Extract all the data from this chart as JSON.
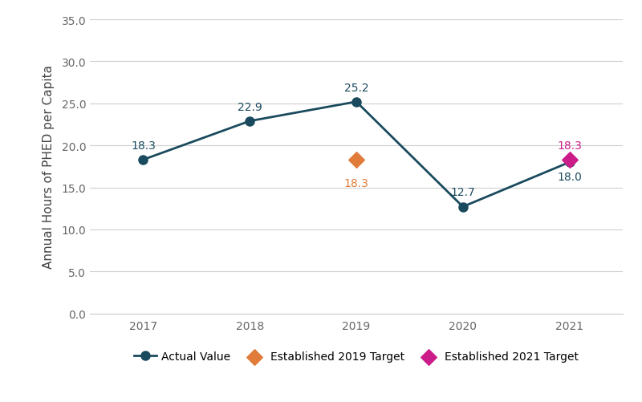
{
  "years": [
    2017,
    2018,
    2019,
    2020,
    2021
  ],
  "actual_values": [
    18.3,
    22.9,
    25.2,
    12.7,
    18.0
  ],
  "target_2019": {
    "year": 2019,
    "value": 18.3
  },
  "target_2021": {
    "year": 2021,
    "value": 18.3
  },
  "actual_line_color": "#1a4a5e",
  "target_2019_color": "#e07b39",
  "target_2021_color": "#cc1c8a",
  "ylabel": "Annual Hours of PHED per Capita",
  "ylim": [
    0,
    35
  ],
  "yticks": [
    0.0,
    5.0,
    10.0,
    15.0,
    20.0,
    25.0,
    30.0,
    35.0
  ],
  "xlim": [
    2016.5,
    2021.5
  ],
  "legend_actual": "Actual Value",
  "legend_2019": "Established 2019 Target",
  "legend_2021": "Established 2021 Target",
  "background_color": "#ffffff",
  "grid_color": "#d0d0d0",
  "annotation_fontsize": 10,
  "axis_label_fontsize": 11,
  "tick_fontsize": 10,
  "legend_fontsize": 10,
  "marker_size": 8,
  "diamond_size": 100,
  "line_width": 2.0,
  "tick_color": "#666666",
  "axis_label_color": "#444444"
}
